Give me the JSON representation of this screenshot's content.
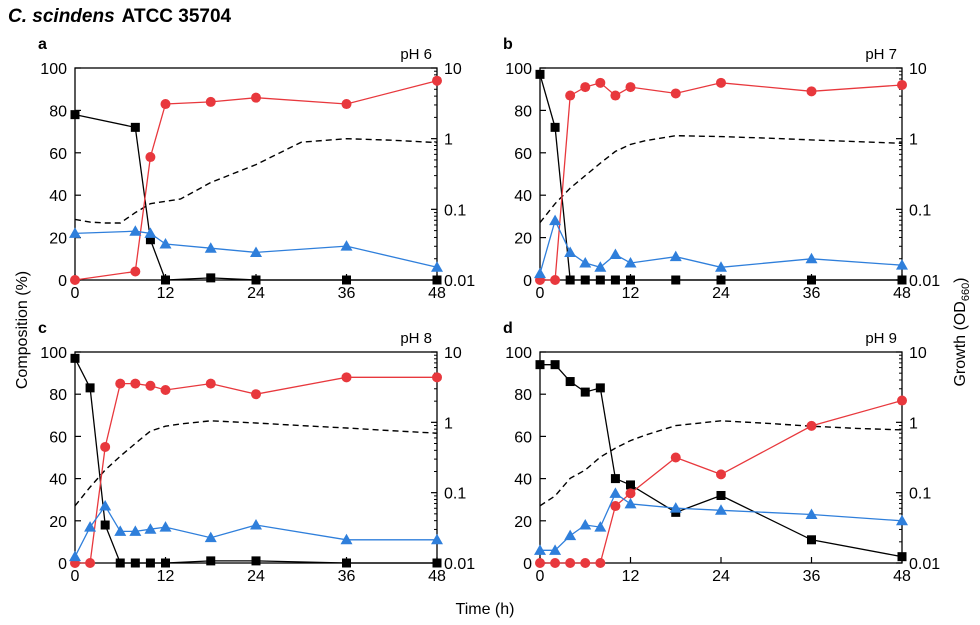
{
  "figure": {
    "title_species": "C. scindens",
    "title_strain": "ATCC 35704",
    "ylabel_left": "Composition (%)",
    "ylabel_right_main": "Growth (OD",
    "ylabel_right_sub": "660",
    "ylabel_right_end": ")",
    "xlabel": "Time (h)"
  },
  "colors": {
    "black_series": "#000000",
    "red_series": "#e8383d",
    "blue_series": "#2f7fdb",
    "od_line": "#000000"
  },
  "chart_data": [
    {
      "type": "line",
      "panel": "a",
      "label": "pH 6",
      "xlim": [
        0,
        48
      ],
      "xticks": [
        0,
        12,
        24,
        36,
        48
      ],
      "ylim": [
        0,
        100
      ],
      "yticks": [
        0,
        20,
        40,
        60,
        80,
        100
      ],
      "y2_scale": "log",
      "y2lim": [
        0.01,
        10
      ],
      "y2ticks": [
        0.01,
        0.1,
        1,
        10
      ],
      "y2ticklabels": [
        "0.01",
        "0.1",
        "1",
        "10"
      ],
      "series": [
        {
          "marker": "square",
          "color": "#000000",
          "x": [
            0,
            8,
            10,
            12,
            18,
            24,
            36,
            48
          ],
          "y": [
            78,
            72,
            19,
            0,
            1,
            0,
            0,
            0
          ]
        },
        {
          "marker": "circle",
          "color": "#e8383d",
          "x": [
            0,
            8,
            10,
            12,
            18,
            24,
            36,
            48
          ],
          "y": [
            0,
            4,
            58,
            83,
            84,
            86,
            83,
            94
          ]
        },
        {
          "marker": "triangle",
          "color": "#2f7fdb",
          "x": [
            0,
            8,
            10,
            12,
            18,
            24,
            36,
            48
          ],
          "y": [
            22,
            23,
            22,
            17,
            15,
            13,
            16,
            6
          ]
        },
        {
          "marker": "none",
          "dash": true,
          "axis": "y2",
          "color": "#000000",
          "x": [
            0,
            2,
            4,
            6,
            8,
            10,
            12,
            14,
            18,
            24,
            30,
            36,
            42,
            48
          ],
          "y": [
            0.072,
            0.066,
            0.064,
            0.064,
            0.09,
            0.12,
            0.13,
            0.14,
            0.24,
            0.43,
            0.89,
            1.0,
            0.95,
            0.88
          ]
        }
      ]
    },
    {
      "type": "line",
      "panel": "b",
      "label": "pH 7",
      "xlim": [
        0,
        48
      ],
      "xticks": [
        0,
        12,
        24,
        36,
        48
      ],
      "ylim": [
        0,
        100
      ],
      "yticks": [
        0,
        20,
        40,
        60,
        80,
        100
      ],
      "y2_scale": "log",
      "y2lim": [
        0.01,
        10
      ],
      "y2ticks": [
        0.01,
        0.1,
        1,
        10
      ],
      "y2ticklabels": [
        "0.01",
        "0.1",
        "1",
        "10"
      ],
      "series": [
        {
          "marker": "square",
          "color": "#000000",
          "x": [
            0,
            2,
            4,
            6,
            8,
            10,
            12,
            18,
            24,
            36,
            48
          ],
          "y": [
            97,
            72,
            0,
            0,
            0,
            0,
            0,
            0,
            0,
            0,
            0
          ]
        },
        {
          "marker": "circle",
          "color": "#e8383d",
          "x": [
            0,
            2,
            4,
            6,
            8,
            10,
            12,
            18,
            24,
            36,
            48
          ],
          "y": [
            0,
            0,
            87,
            91,
            93,
            87,
            91,
            88,
            93,
            89,
            92
          ]
        },
        {
          "marker": "triangle",
          "color": "#2f7fdb",
          "x": [
            0,
            2,
            4,
            6,
            8,
            10,
            12,
            18,
            24,
            36,
            48
          ],
          "y": [
            3,
            28,
            13,
            8,
            6,
            12,
            8,
            11,
            6,
            10,
            7
          ]
        },
        {
          "marker": "none",
          "dash": true,
          "axis": "y2",
          "color": "#000000",
          "x": [
            0,
            2,
            4,
            6,
            8,
            10,
            12,
            14,
            18,
            24,
            30,
            36,
            42,
            48
          ],
          "y": [
            0.065,
            0.12,
            0.2,
            0.3,
            0.45,
            0.66,
            0.83,
            0.94,
            1.1,
            1.07,
            1.02,
            0.96,
            0.91,
            0.86
          ]
        }
      ]
    },
    {
      "type": "line",
      "panel": "c",
      "label": "pH 8",
      "xlim": [
        0,
        48
      ],
      "xticks": [
        0,
        12,
        24,
        36,
        48
      ],
      "ylim": [
        0,
        100
      ],
      "yticks": [
        0,
        20,
        40,
        60,
        80,
        100
      ],
      "y2_scale": "log",
      "y2lim": [
        0.01,
        10
      ],
      "y2ticks": [
        0.01,
        0.1,
        1,
        10
      ],
      "y2ticklabels": [
        "0.01",
        "0.1",
        "1",
        "10"
      ],
      "series": [
        {
          "marker": "square",
          "color": "#000000",
          "x": [
            0,
            2,
            4,
            6,
            8,
            10,
            12,
            18,
            24,
            36,
            48
          ],
          "y": [
            97,
            83,
            18,
            0,
            0,
            0,
            0,
            1,
            1,
            0,
            0
          ]
        },
        {
          "marker": "circle",
          "color": "#e8383d",
          "x": [
            0,
            2,
            4,
            6,
            8,
            10,
            12,
            18,
            24,
            36,
            48
          ],
          "y": [
            0,
            0,
            55,
            85,
            85,
            84,
            82,
            85,
            80,
            88,
            88
          ]
        },
        {
          "marker": "triangle",
          "color": "#2f7fdb",
          "x": [
            0,
            2,
            4,
            6,
            8,
            10,
            12,
            18,
            24,
            36,
            48
          ],
          "y": [
            3,
            17,
            27,
            15,
            15,
            16,
            17,
            12,
            18,
            11,
            11
          ]
        },
        {
          "marker": "none",
          "dash": true,
          "axis": "y2",
          "color": "#000000",
          "x": [
            0,
            2,
            4,
            6,
            8,
            10,
            12,
            14,
            18,
            24,
            30,
            36,
            42,
            48
          ],
          "y": [
            0.065,
            0.12,
            0.21,
            0.33,
            0.5,
            0.75,
            0.88,
            0.95,
            1.05,
            0.98,
            0.9,
            0.83,
            0.76,
            0.7
          ]
        }
      ]
    },
    {
      "type": "line",
      "panel": "d",
      "label": "pH 9",
      "xlim": [
        0,
        48
      ],
      "xticks": [
        0,
        12,
        24,
        36,
        48
      ],
      "ylim": [
        0,
        100
      ],
      "yticks": [
        0,
        20,
        40,
        60,
        80,
        100
      ],
      "y2_scale": "log",
      "y2lim": [
        0.01,
        10
      ],
      "y2ticks": [
        0.01,
        0.1,
        1,
        10
      ],
      "y2ticklabels": [
        "0.01",
        "0.1",
        "1",
        "10"
      ],
      "series": [
        {
          "marker": "square",
          "color": "#000000",
          "x": [
            0,
            2,
            4,
            6,
            8,
            10,
            12,
            18,
            24,
            36,
            48
          ],
          "y": [
            94,
            94,
            86,
            81,
            83,
            40,
            37,
            24,
            32,
            11,
            3
          ]
        },
        {
          "marker": "circle",
          "color": "#e8383d",
          "x": [
            0,
            2,
            4,
            6,
            8,
            10,
            12,
            18,
            24,
            36,
            48
          ],
          "y": [
            0,
            0,
            0,
            0,
            0,
            27,
            33,
            50,
            42,
            65,
            77
          ]
        },
        {
          "marker": "triangle",
          "color": "#2f7fdb",
          "x": [
            0,
            2,
            4,
            6,
            8,
            10,
            12,
            18,
            24,
            36,
            48
          ],
          "y": [
            6,
            6,
            13,
            18,
            17,
            33,
            28,
            26,
            25,
            23,
            20
          ]
        },
        {
          "marker": "none",
          "dash": true,
          "axis": "y2",
          "color": "#000000",
          "x": [
            0,
            2,
            4,
            6,
            8,
            10,
            12,
            14,
            18,
            24,
            30,
            36,
            42,
            48
          ],
          "y": [
            0.065,
            0.09,
            0.16,
            0.21,
            0.32,
            0.43,
            0.55,
            0.66,
            0.9,
            1.05,
            0.97,
            0.88,
            0.82,
            0.78
          ]
        }
      ]
    }
  ]
}
